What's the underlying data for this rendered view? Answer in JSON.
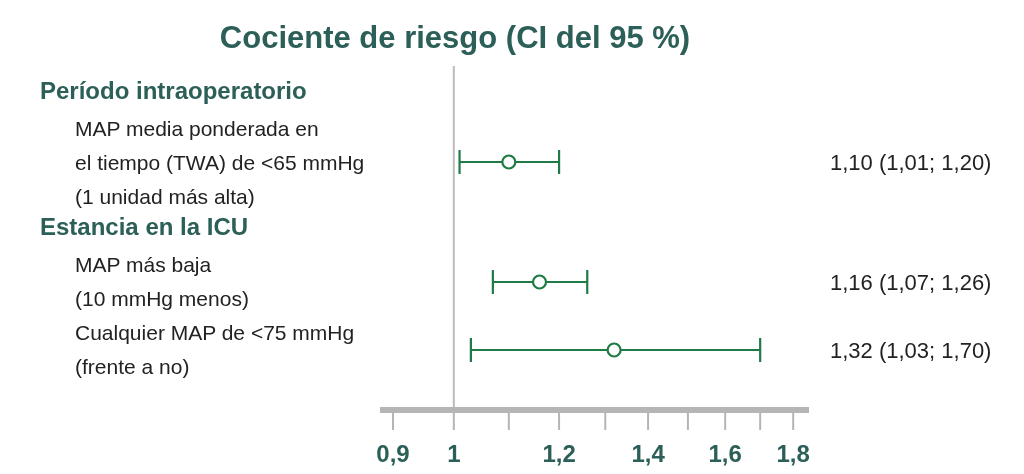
{
  "chart_data": {
    "type": "scatter",
    "orientation": "horizontal",
    "title": "Cociente de riesgo (CI del 95 %)",
    "categories": [
      "MAP media ponderada en\nel tiempo (TWA) de <65 mmHg\n(1 unidad más alta)",
      "MAP más baja\n(10 mmHg menos)",
      "Cualquier MAP de <75 mmHg\n(frente a no)"
    ],
    "values": [
      1.1,
      1.16,
      1.32
    ],
    "errors": [
      [
        1.01,
        1.2
      ],
      [
        1.07,
        1.26
      ],
      [
        1.03,
        1.7
      ]
    ],
    "value_labels": [
      "1,10 (1,01; 1,20)",
      "1,16 (1,07; 1,26)",
      "1,32 (1,03; 1,70)"
    ],
    "annotations": [
      "Período intraoperatorio",
      "Estancia en la ICU"
    ],
    "color": "#1e7b45",
    "marker": "circle",
    "log": "x",
    "grid": false,
    "xlim": [
      0.88,
      1.85
    ],
    "xticks": [
      {
        "value": 0.9,
        "label": "0,9"
      },
      1,
      {
        "value": 1.2,
        "label": "1,2"
      },
      {
        "value": 1.4,
        "label": "1,4"
      },
      {
        "value": 1.6,
        "label": "1,6"
      },
      {
        "value": 1.8,
        "label": "1,8"
      }
    ],
    "ref_lines": [
      {
        "axis": "x",
        "value": 1,
        "color": "#bbbbbb"
      }
    ]
  }
}
